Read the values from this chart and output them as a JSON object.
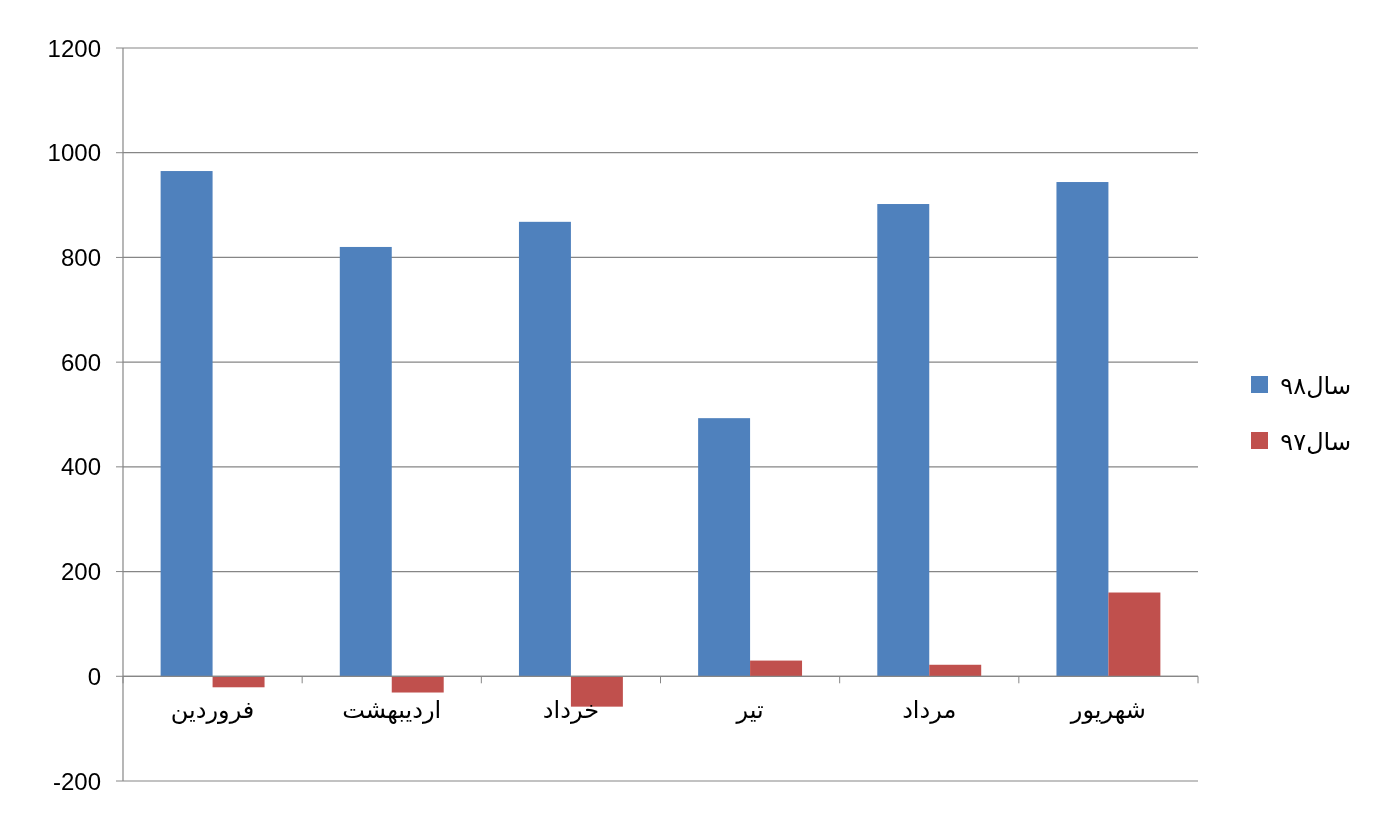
{
  "chart_data": {
    "type": "bar",
    "categories": [
      "فروردین",
      "اردیبهشت",
      "خرداد",
      "تیر",
      "مرداد",
      "شهریور"
    ],
    "series": [
      {
        "name": "سال۹۸",
        "color": "#4f81bd",
        "values": [
          965,
          820,
          868,
          493,
          902,
          944
        ]
      },
      {
        "name": "سال۹۷",
        "color": "#c0504d",
        "values": [
          -21,
          -31,
          -58,
          30,
          22,
          160
        ]
      }
    ],
    "ylim": [
      -200,
      1200
    ],
    "yticks": [
      -200,
      0,
      200,
      400,
      600,
      800,
      1000,
      1200
    ],
    "grid": "y",
    "legend": "right"
  }
}
